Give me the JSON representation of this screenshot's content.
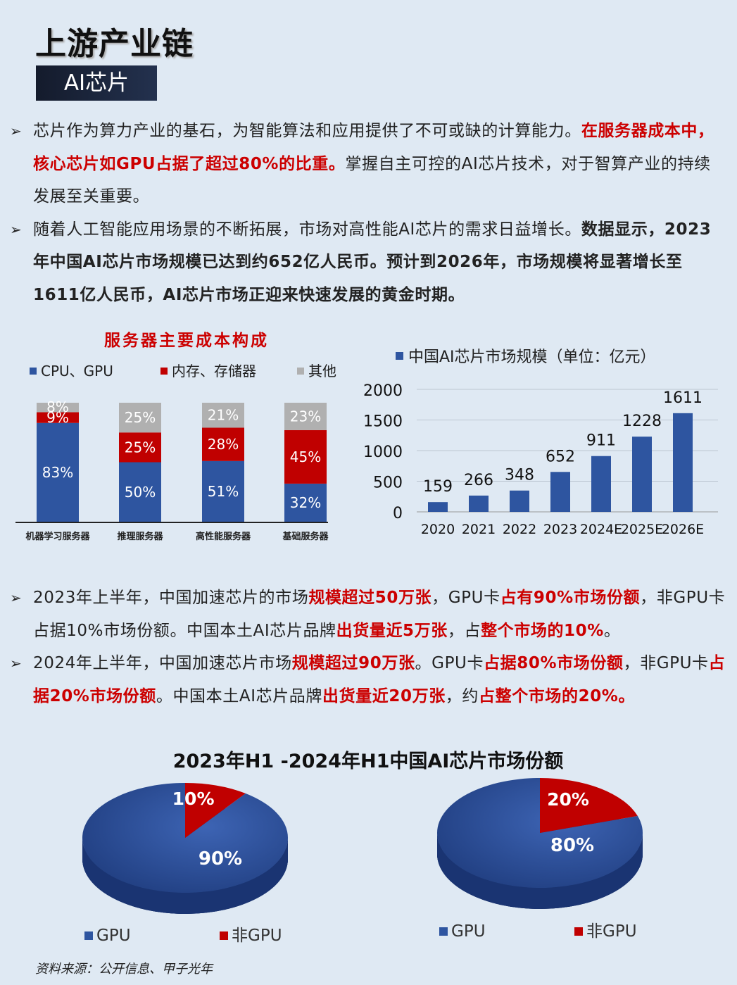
{
  "title": "上游产业链",
  "subtitle": "AI芯片",
  "bullets_top": [
    [
      {
        "t": "芯片作为算力产业的基石，为智能算法和应用提供了不可或缺的计算能力。",
        "s": "n"
      },
      {
        "t": "在服务器成本中，核心芯片如GPU占据了超过80%的比重。",
        "s": "r"
      },
      {
        "t": "掌握自主可控的AI芯片技术，对于智算产业的持续发展至关重要。",
        "s": "n"
      }
    ],
    [
      {
        "t": "随着人工智能应用场景的不断拓展，市场对高性能AI芯片的需求日益增长。",
        "s": "n"
      },
      {
        "t": "数据显示，2023年中国AI芯片市场规模已达到约652亿人民币。预计到2026年，市场规模将显著增长至1611亿人民币，AI芯片市场正迎来快速发展的黄金时期。",
        "s": "b"
      }
    ]
  ],
  "bullets_bottom": [
    [
      {
        "t": "2023年上半年，中国加速芯片的市场",
        "s": "n"
      },
      {
        "t": "规模超过50万张",
        "s": "r"
      },
      {
        "t": "，GPU卡",
        "s": "n"
      },
      {
        "t": "占有90%市场份额",
        "s": "r"
      },
      {
        "t": "，非GPU卡占据10%市场份额。中国本土AI芯片品牌",
        "s": "n"
      },
      {
        "t": "出货量近5万张",
        "s": "r"
      },
      {
        "t": "，占",
        "s": "n"
      },
      {
        "t": "整个市场的10%",
        "s": "r"
      },
      {
        "t": "。",
        "s": "n"
      }
    ],
    [
      {
        "t": "2024年上半年，中国加速芯片市场",
        "s": "n"
      },
      {
        "t": "规模超过90万张",
        "s": "r"
      },
      {
        "t": "。GPU卡",
        "s": "n"
      },
      {
        "t": "占据80%市场份额",
        "s": "r"
      },
      {
        "t": "，非GPU卡",
        "s": "n"
      },
      {
        "t": "占据20%市场份额",
        "s": "r"
      },
      {
        "t": "。中国本土AI芯片品牌",
        "s": "n"
      },
      {
        "t": "出货量近20万张",
        "s": "r"
      },
      {
        "t": "，约",
        "s": "n"
      },
      {
        "t": "占整个市场的20%。",
        "s": "r"
      }
    ]
  ],
  "colors": {
    "blue": "#2e55a0",
    "red": "#c00000",
    "gray": "#b0b0b0",
    "darkblue": "#1f3d7f"
  },
  "source": "资料来源：公开信息、甲子光年",
  "chart_data": [
    {
      "type": "bar",
      "stacked": true,
      "title": "服务器主要成本构成",
      "categories": [
        "机器学习服务器",
        "推理服务器",
        "高性能服务器",
        "基础服务器"
      ],
      "series": [
        {
          "name": "CPU、GPU",
          "values": [
            83,
            50,
            51,
            32
          ]
        },
        {
          "name": "内存、存储器",
          "values": [
            9,
            25,
            28,
            45
          ]
        },
        {
          "name": "其他",
          "values": [
            8,
            25,
            21,
            23
          ]
        }
      ],
      "ylim": [
        0,
        100
      ],
      "legend": "top"
    },
    {
      "type": "bar",
      "title": "中国AI芯片市场规模（单位：亿元）",
      "categories": [
        "2020",
        "2021",
        "2022",
        "2023",
        "2024E",
        "2025E",
        "2026E"
      ],
      "series": [
        {
          "name": "中国AI芯片市场规模（单位：亿元）",
          "values": [
            159,
            266,
            348,
            652,
            911,
            1228,
            1611
          ]
        }
      ],
      "yticks": [
        "0",
        "500",
        "1000",
        "1500",
        "2000"
      ],
      "ylim": [
        0,
        2000
      ],
      "legend": "top"
    },
    {
      "type": "pie",
      "title": "2023年H1 -2024年H1中国AI芯片市场份额",
      "charts": [
        {
          "slices": [
            {
              "name": "GPU",
              "value": 90,
              "label": "90%"
            },
            {
              "name": "非GPU",
              "value": 10,
              "label": "10%"
            }
          ]
        },
        {
          "slices": [
            {
              "name": "GPU",
              "value": 80,
              "label": "80%"
            },
            {
              "name": "非GPU",
              "value": 20,
              "label": "20%"
            }
          ]
        }
      ],
      "legend": "bottom"
    }
  ]
}
